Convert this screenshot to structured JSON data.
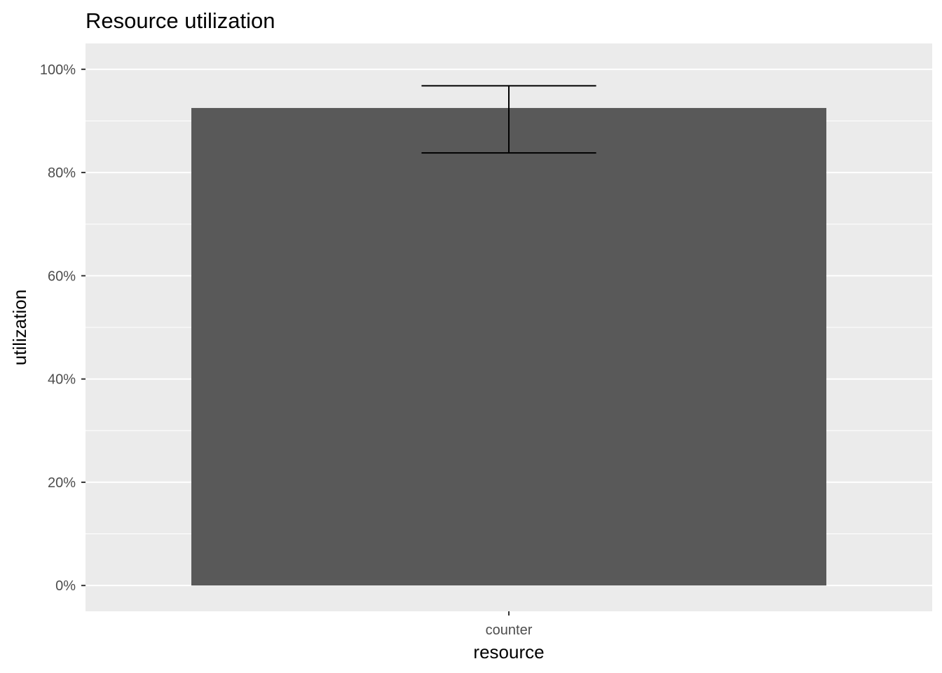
{
  "chart_data": {
    "type": "bar",
    "title": "Resource utilization",
    "xlabel": "resource",
    "ylabel": "utilization",
    "categories": [
      "counter"
    ],
    "values": [
      0.925
    ],
    "error_bars": [
      {
        "low": 0.838,
        "high": 0.968
      }
    ],
    "ylim": [
      -0.05,
      1.05
    ],
    "yticks": [
      0,
      0.2,
      0.4,
      0.6,
      0.8,
      1.0
    ],
    "ytick_labels": [
      "0%",
      "20%",
      "40%",
      "60%",
      "80%",
      "100%"
    ],
    "grid": true,
    "legend": "none",
    "colors": {
      "panel": "#ebebeb",
      "grid": "#ffffff",
      "bar": "#595959",
      "errorbar": "#000000",
      "tick": "#333333",
      "tick_label": "#4d4d4d"
    }
  }
}
